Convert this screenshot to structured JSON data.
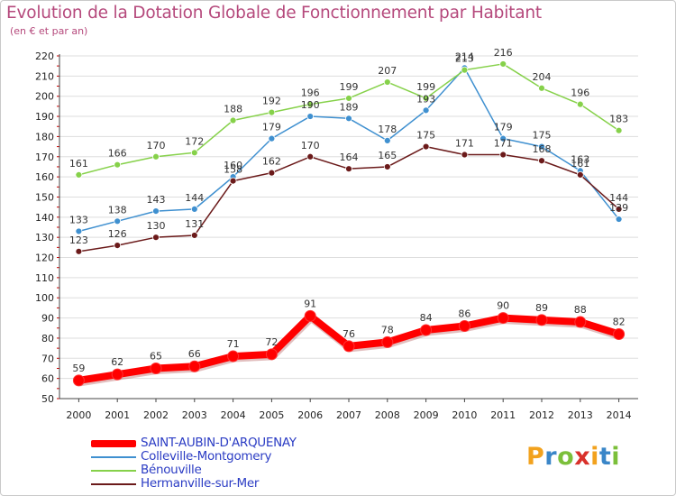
{
  "title": "Evolution de la Dotation Globale de Fonctionnement par Habitant",
  "subtitle": "(en € et par an)",
  "logo_text": [
    "P",
    "r",
    "o",
    "x",
    "i",
    "t",
    "i"
  ],
  "logo_colors": [
    "#f2a21e",
    "#3a86c8",
    "#7bbf3a",
    "#d9312b",
    "#f2a21e",
    "#3a86c8",
    "#7bbf3a"
  ],
  "chart_data": {
    "type": "line",
    "title": "Evolution de la Dotation Globale de Fonctionnement par Habitant",
    "subtitle": "(en € et par an)",
    "xlabel": "",
    "ylabel": "",
    "ylim": [
      50,
      220
    ],
    "yticks": [
      50,
      60,
      70,
      80,
      90,
      100,
      110,
      120,
      130,
      140,
      150,
      160,
      170,
      180,
      190,
      200,
      210,
      220
    ],
    "grid": true,
    "categories": [
      "2000",
      "2001",
      "2002",
      "2003",
      "2004",
      "2005",
      "2006",
      "2007",
      "2008",
      "2009",
      "2010",
      "2011",
      "2012",
      "2013",
      "2014"
    ],
    "series": [
      {
        "name": "SAINT-AUBIN-D'ARQUENAY",
        "color": "#ff0000",
        "values": [
          59,
          62,
          65,
          66,
          71,
          72,
          91,
          76,
          78,
          84,
          86,
          90,
          89,
          88,
          82
        ]
      },
      {
        "name": "Colleville-Montgomery",
        "color": "#3f90d0",
        "values": [
          133,
          138,
          143,
          144,
          160,
          179,
          190,
          189,
          178,
          193,
          214,
          179,
          175,
          163,
          139
        ]
      },
      {
        "name": "Bénouville",
        "color": "#86d14a",
        "values": [
          161,
          166,
          170,
          172,
          188,
          192,
          196,
          199,
          207,
          199,
          213,
          216,
          204,
          196,
          183
        ]
      },
      {
        "name": "Hermanville-sur-Mer",
        "color": "#6b1a1a",
        "values": [
          123,
          126,
          130,
          131,
          158,
          162,
          170,
          164,
          165,
          175,
          171,
          171,
          168,
          161,
          144
        ]
      }
    ],
    "legend_position": "bottom-left"
  }
}
